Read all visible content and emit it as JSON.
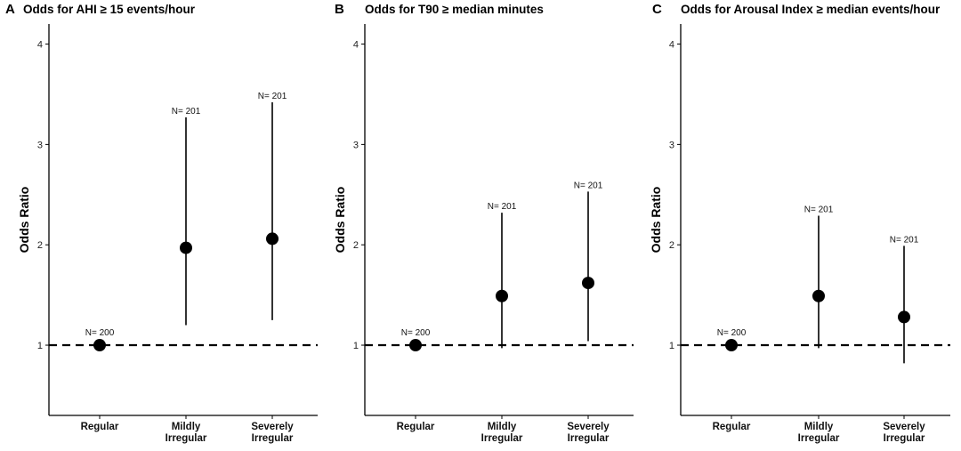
{
  "chart_data": [
    {
      "type": "scatter",
      "panel_label": "A",
      "title": "Odds for AHI ≥ 15 events/hour",
      "xlabel": "",
      "ylabel": "Odds Ratio",
      "ylim": [
        0.3,
        4.2
      ],
      "yticks": [
        1,
        2,
        3,
        4
      ],
      "categories": [
        "Regular",
        "Mildly Irregular",
        "Severely Irregular"
      ],
      "values": [
        1.0,
        1.97,
        2.06
      ],
      "ci_low": [
        1.0,
        1.2,
        1.25
      ],
      "ci_high": [
        1.0,
        3.27,
        3.42
      ],
      "n_labels": [
        "N= 200",
        "N= 201",
        "N= 201"
      ],
      "reference_line": 1
    },
    {
      "type": "scatter",
      "panel_label": "B",
      "title": "Odds for T90 ≥ median minutes",
      "xlabel": "",
      "ylabel": "Odds Ratio",
      "ylim": [
        0.3,
        4.2
      ],
      "yticks": [
        1,
        2,
        3,
        4
      ],
      "categories": [
        "Regular",
        "Mildly Irregular",
        "Severely Irregular"
      ],
      "values": [
        1.0,
        1.49,
        1.62
      ],
      "ci_low": [
        1.0,
        0.97,
        1.04
      ],
      "ci_high": [
        1.0,
        2.32,
        2.53
      ],
      "n_labels": [
        "N= 200",
        "N= 201",
        "N= 201"
      ],
      "reference_line": 1
    },
    {
      "type": "scatter",
      "panel_label": "C",
      "title": "Odds for Arousal Index ≥ median events/hour",
      "xlabel": "",
      "ylabel": "Odds Ratio",
      "ylim": [
        0.3,
        4.2
      ],
      "yticks": [
        1,
        2,
        3,
        4
      ],
      "categories": [
        "Regular",
        "Mildly Irregular",
        "Severely Irregular"
      ],
      "values": [
        1.0,
        1.49,
        1.28
      ],
      "ci_low": [
        1.0,
        0.97,
        0.82
      ],
      "ci_high": [
        1.0,
        2.29,
        1.99
      ],
      "n_labels": [
        "N= 200",
        "N= 201",
        "N= 201"
      ],
      "reference_line": 1
    }
  ]
}
